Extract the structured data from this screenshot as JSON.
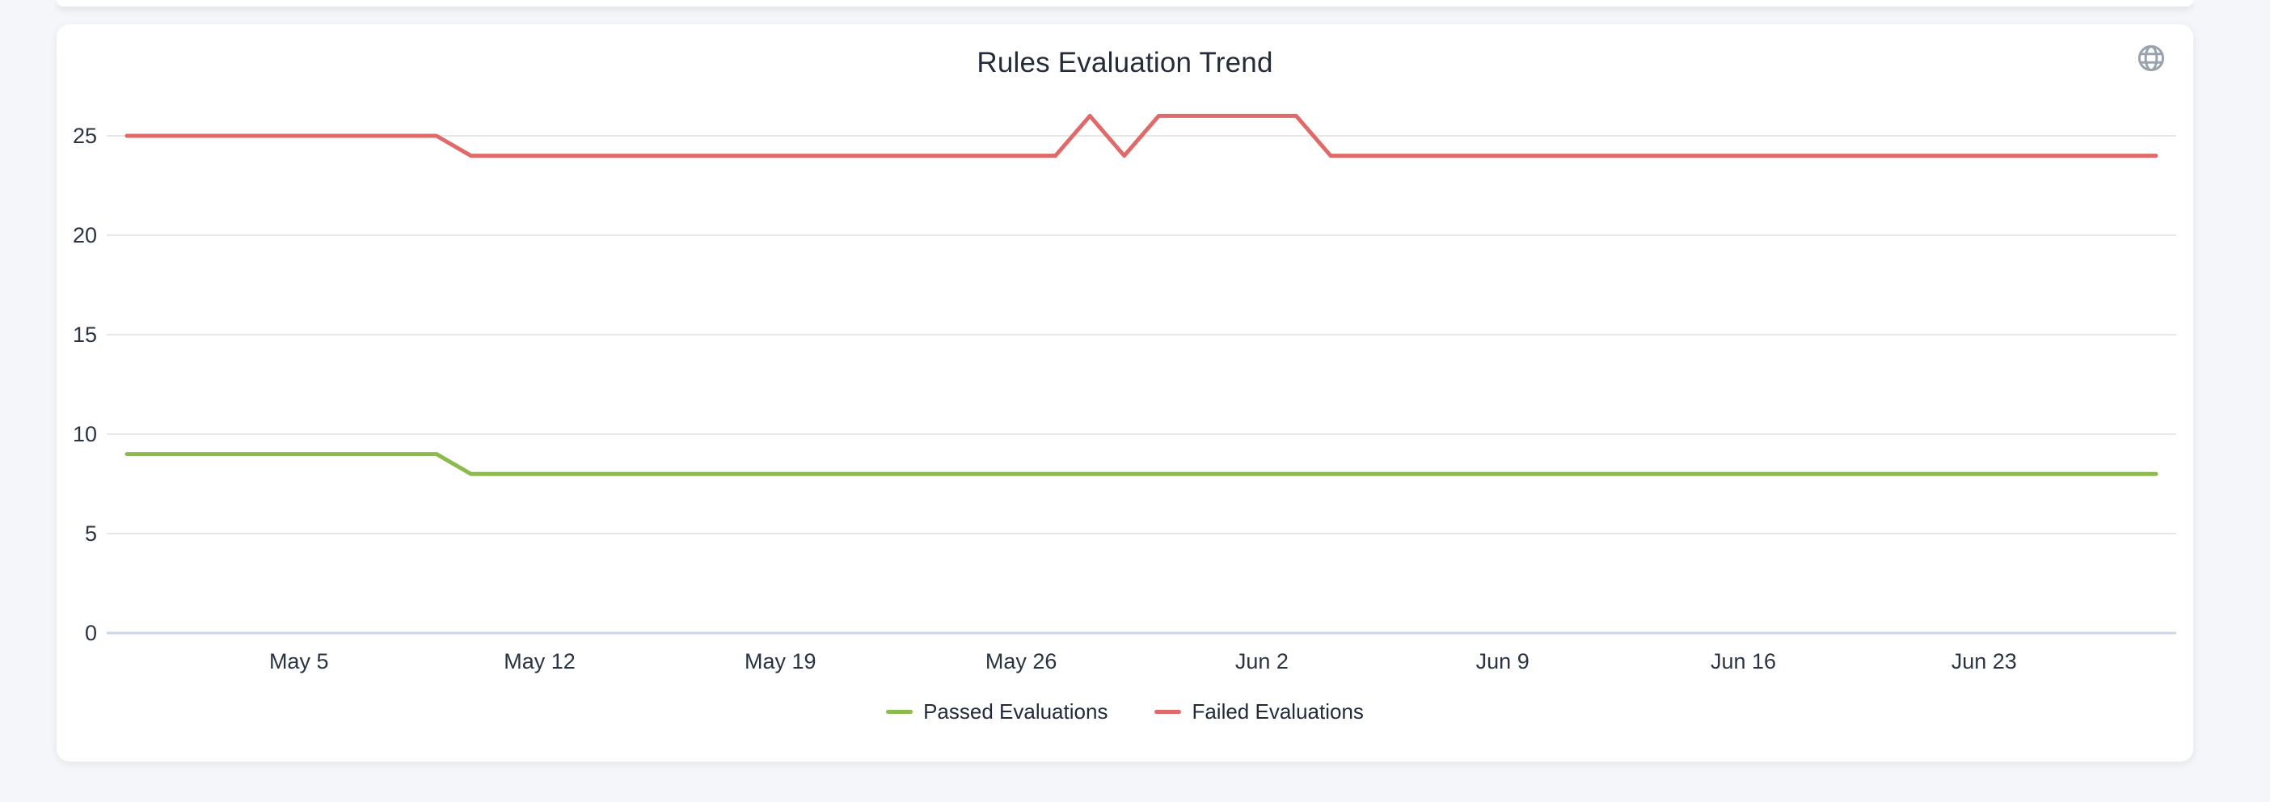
{
  "page": {
    "background": "#f4f6f9"
  },
  "card": {
    "title": "Rules Evaluation Trend",
    "globe_icon": "globe-icon",
    "globe_color": "#9aa3ad"
  },
  "chart_data": {
    "type": "line",
    "title": "Rules Evaluation Trend",
    "grid": "horizontal",
    "legend_position": "bottom",
    "grid_color": "#e7e7e7",
    "axis_line_color": "#ccd6e8",
    "label_color": "#2a3342",
    "ylim": [
      0,
      27.5
    ],
    "y_ticks": [
      0,
      5,
      10,
      15,
      20,
      25
    ],
    "x_ticks": [
      {
        "index": 5,
        "label": "May 5"
      },
      {
        "index": 12,
        "label": "May 12"
      },
      {
        "index": 19,
        "label": "May 19"
      },
      {
        "index": 26,
        "label": "May 26"
      },
      {
        "index": 33,
        "label": "Jun 2"
      },
      {
        "index": 40,
        "label": "Jun 9"
      },
      {
        "index": 47,
        "label": "Jun 16"
      },
      {
        "index": 54,
        "label": "Jun 23"
      }
    ],
    "x": [
      "Apr 30",
      "May 1",
      "May 2",
      "May 3",
      "May 4",
      "May 5",
      "May 6",
      "May 7",
      "May 8",
      "May 9",
      "May 10",
      "May 11",
      "May 12",
      "May 13",
      "May 14",
      "May 15",
      "May 16",
      "May 17",
      "May 18",
      "May 19",
      "May 20",
      "May 21",
      "May 22",
      "May 23",
      "May 24",
      "May 25",
      "May 26",
      "May 27",
      "May 28",
      "May 29",
      "May 30",
      "May 31",
      "Jun 1",
      "Jun 2",
      "Jun 3",
      "Jun 4",
      "Jun 5",
      "Jun 6",
      "Jun 7",
      "Jun 8",
      "Jun 9",
      "Jun 10",
      "Jun 11",
      "Jun 12",
      "Jun 13",
      "Jun 14",
      "Jun 15",
      "Jun 16",
      "Jun 17",
      "Jun 18",
      "Jun 19",
      "Jun 20",
      "Jun 21",
      "Jun 22",
      "Jun 23",
      "Jun 24",
      "Jun 25",
      "Jun 26",
      "Jun 27",
      "Jun 28"
    ],
    "series": [
      {
        "name": "Passed Evaluations",
        "color": "#8cba4d",
        "values": [
          9,
          9,
          9,
          9,
          9,
          9,
          9,
          9,
          9,
          9,
          8,
          8,
          8,
          8,
          8,
          8,
          8,
          8,
          8,
          8,
          8,
          8,
          8,
          8,
          8,
          8,
          8,
          8,
          8,
          8,
          8,
          8,
          8,
          8,
          8,
          8,
          8,
          8,
          8,
          8,
          8,
          8,
          8,
          8,
          8,
          8,
          8,
          8,
          8,
          8,
          8,
          8,
          8,
          8,
          8,
          8,
          8,
          8,
          8,
          8
        ]
      },
      {
        "name": "Failed Evaluations",
        "color": "#e06a6a",
        "values": [
          25,
          25,
          25,
          25,
          25,
          25,
          25,
          25,
          25,
          25,
          24,
          24,
          24,
          24,
          24,
          24,
          24,
          24,
          24,
          24,
          24,
          24,
          24,
          24,
          24,
          24,
          24,
          24,
          26,
          24,
          26,
          26,
          26,
          26,
          26,
          24,
          24,
          24,
          24,
          24,
          24,
          24,
          24,
          24,
          24,
          24,
          24,
          24,
          24,
          24,
          24,
          24,
          24,
          24,
          24,
          24,
          24,
          24,
          24,
          24
        ]
      }
    ]
  }
}
